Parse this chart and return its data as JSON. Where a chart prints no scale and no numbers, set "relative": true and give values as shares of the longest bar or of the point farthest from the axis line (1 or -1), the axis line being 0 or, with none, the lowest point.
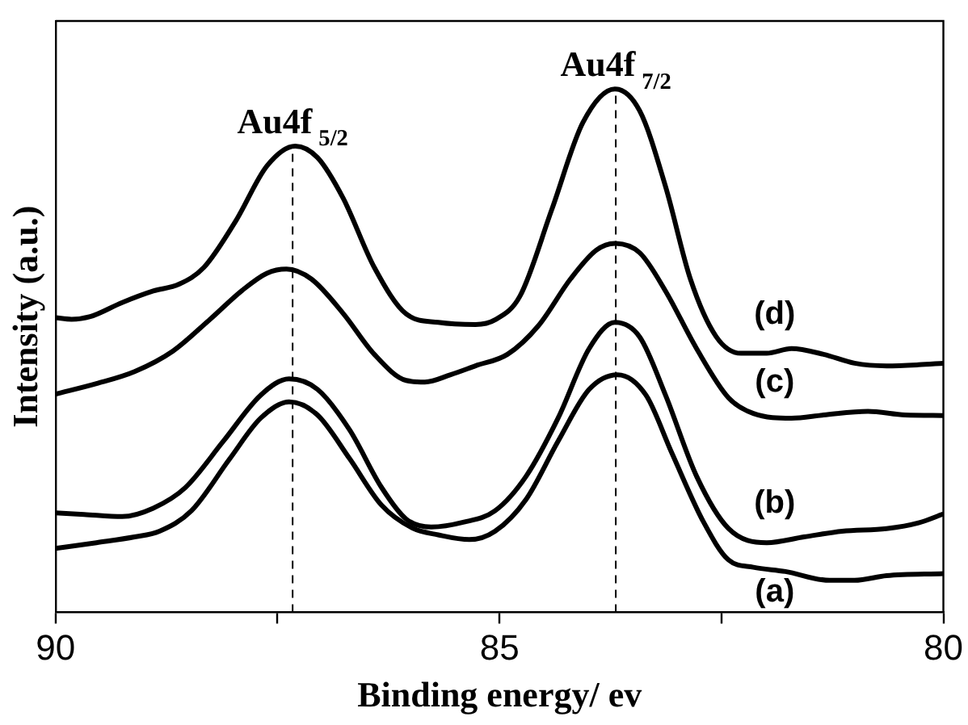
{
  "chart_data": {
    "type": "line",
    "relative": true,
    "xlabel": "Binding energy/ ev",
    "ylabel": "Intensity (a.u.)",
    "xlim": [
      90,
      80
    ],
    "xticks": [
      90,
      {
        "value": 87.5,
        "label": null
      },
      85,
      {
        "value": 82.5,
        "label": null
      },
      80
    ],
    "grid": false,
    "legend": false,
    "marker": "none",
    "line_style": "solid",
    "tick_labels": "x",
    "ref_lines": [
      {
        "axis": "x",
        "value": 87.33,
        "label": "Au4f$_{5/2}$",
        "color": "#000000",
        "line_style": "dashed"
      },
      {
        "axis": "x",
        "value": 83.69,
        "label": "Au4f$_{7/2}$",
        "color": "#000000",
        "line_style": "dashed"
      }
    ],
    "series": [
      {
        "name": "(d)",
        "color": "#000000",
        "x": [
          90,
          89.82,
          89.61,
          89.25,
          88.9,
          88.61,
          88.33,
          87.97,
          87.62,
          87.3,
          87.05,
          86.76,
          86.41,
          86.05,
          85.69,
          85.27,
          85.05,
          84.77,
          84.41,
          84.06,
          83.7,
          83.42,
          83.13,
          82.85,
          82.56,
          82.28,
          81.99,
          81.71,
          81.35,
          81,
          80.64,
          80.28,
          80
        ],
        "values": [
          0.563,
          0.56,
          0.565,
          0.592,
          0.614,
          0.627,
          0.659,
          0.748,
          0.853,
          0.891,
          0.869,
          0.791,
          0.659,
          0.57,
          0.554,
          0.55,
          0.559,
          0.604,
          0.77,
          0.936,
          1,
          0.958,
          0.814,
          0.637,
          0.527,
          0.495,
          0.495,
          0.504,
          0.493,
          0.476,
          0.471,
          0.473,
          0.476
        ]
      },
      {
        "name": "(c)",
        "color": "#000000",
        "x": [
          90,
          89.54,
          89.11,
          88.68,
          88.26,
          87.9,
          87.62,
          87.4,
          87.12,
          86.76,
          86.41,
          86.05,
          85.84,
          85.55,
          85.27,
          84.91,
          84.56,
          84.2,
          83.91,
          83.7,
          83.42,
          83.13,
          82.78,
          82.42,
          82.14,
          81.71,
          81.35,
          80.85,
          80.43,
          80
        ],
        "values": [
          0.417,
          0.437,
          0.46,
          0.499,
          0.56,
          0.615,
          0.648,
          0.656,
          0.637,
          0.571,
          0.493,
          0.443,
          0.44,
          0.454,
          0.471,
          0.493,
          0.548,
          0.637,
          0.692,
          0.705,
          0.687,
          0.614,
          0.504,
          0.41,
          0.38,
          0.371,
          0.377,
          0.384,
          0.377,
          0.376
        ]
      },
      {
        "name": "(b)",
        "color": "#000000",
        "x": [
          90,
          89.68,
          89.25,
          88.9,
          88.54,
          88.11,
          87.69,
          87.37,
          87.05,
          86.69,
          86.33,
          86.05,
          85.77,
          85.41,
          85.05,
          84.7,
          84.34,
          83.99,
          83.7,
          83.42,
          83.13,
          82.78,
          82.42,
          81.99,
          81.57,
          81.14,
          80.64,
          80.28,
          80
        ],
        "values": [
          0.19,
          0.187,
          0.183,
          0.199,
          0.238,
          0.327,
          0.415,
          0.446,
          0.426,
          0.349,
          0.239,
          0.178,
          0.163,
          0.172,
          0.194,
          0.26,
          0.371,
          0.504,
          0.554,
          0.526,
          0.415,
          0.26,
          0.16,
          0.133,
          0.144,
          0.155,
          0.16,
          0.171,
          0.188
        ]
      },
      {
        "name": "(a)",
        "color": "#000000",
        "x": [
          90,
          89.54,
          89.11,
          88.83,
          88.47,
          88.04,
          87.69,
          87.37,
          87.05,
          86.69,
          86.33,
          85.98,
          85.69,
          85.34,
          85.05,
          84.7,
          84.34,
          83.99,
          83.67,
          83.35,
          83.06,
          82.7,
          82.42,
          82.14,
          81.78,
          81.28,
          81,
          80.64,
          80
        ],
        "values": [
          0.122,
          0.133,
          0.144,
          0.155,
          0.194,
          0.293,
          0.371,
          0.402,
          0.377,
          0.294,
          0.205,
          0.161,
          0.148,
          0.139,
          0.155,
          0.216,
          0.327,
          0.426,
          0.454,
          0.415,
          0.305,
          0.172,
          0.1,
          0.086,
          0.078,
          0.061,
          0.061,
          0.07,
          0.074
        ]
      }
    ]
  }
}
